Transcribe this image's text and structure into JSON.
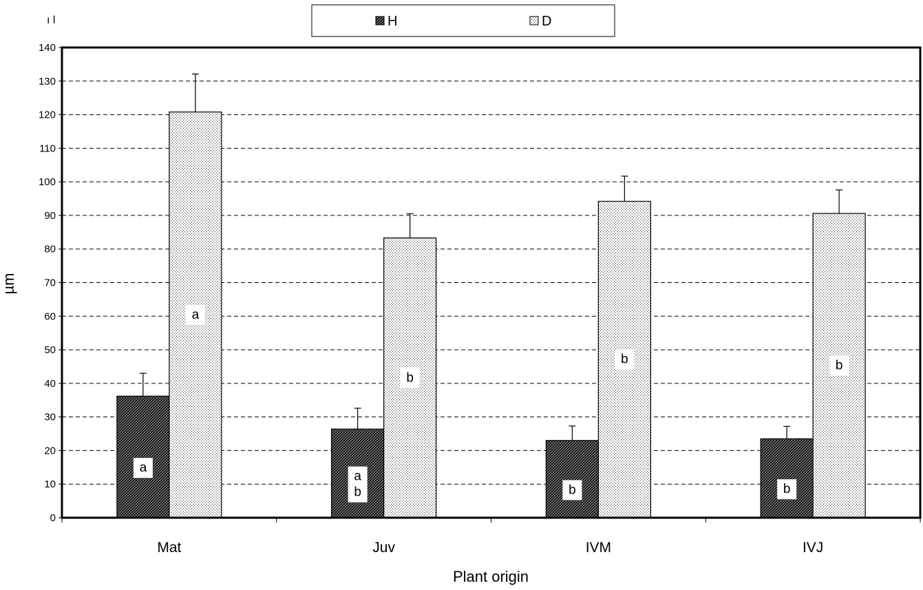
{
  "corner_mark": "ı l",
  "colors": {
    "background": "#ffffff",
    "axis": "#000000",
    "grid": "#000000",
    "bar_border": "#000000"
  },
  "chart_data": {
    "type": "bar",
    "title": "",
    "xlabel": "Plant origin",
    "ylabel": "µm",
    "ylim": [
      0,
      140
    ],
    "ytick_step": 10,
    "grid": "horizontal dashed",
    "legend": "top",
    "categories": [
      "Mat",
      "Juv",
      "IVM",
      "IVJ"
    ],
    "series": [
      {
        "name": "H",
        "pattern": "dense-hatch",
        "values": [
          36.2,
          26.4,
          23.0,
          23.5
        ],
        "errors": [
          6.8,
          6.2,
          4.3,
          3.7
        ],
        "labels": [
          "a",
          "a\nb",
          "b",
          "b"
        ]
      },
      {
        "name": "D",
        "pattern": "dotted",
        "values": [
          120.8,
          83.3,
          94.2,
          90.6
        ],
        "errors": [
          11.3,
          7.2,
          7.5,
          7.0
        ],
        "labels": [
          "a",
          "b",
          "b",
          "b"
        ]
      }
    ]
  }
}
